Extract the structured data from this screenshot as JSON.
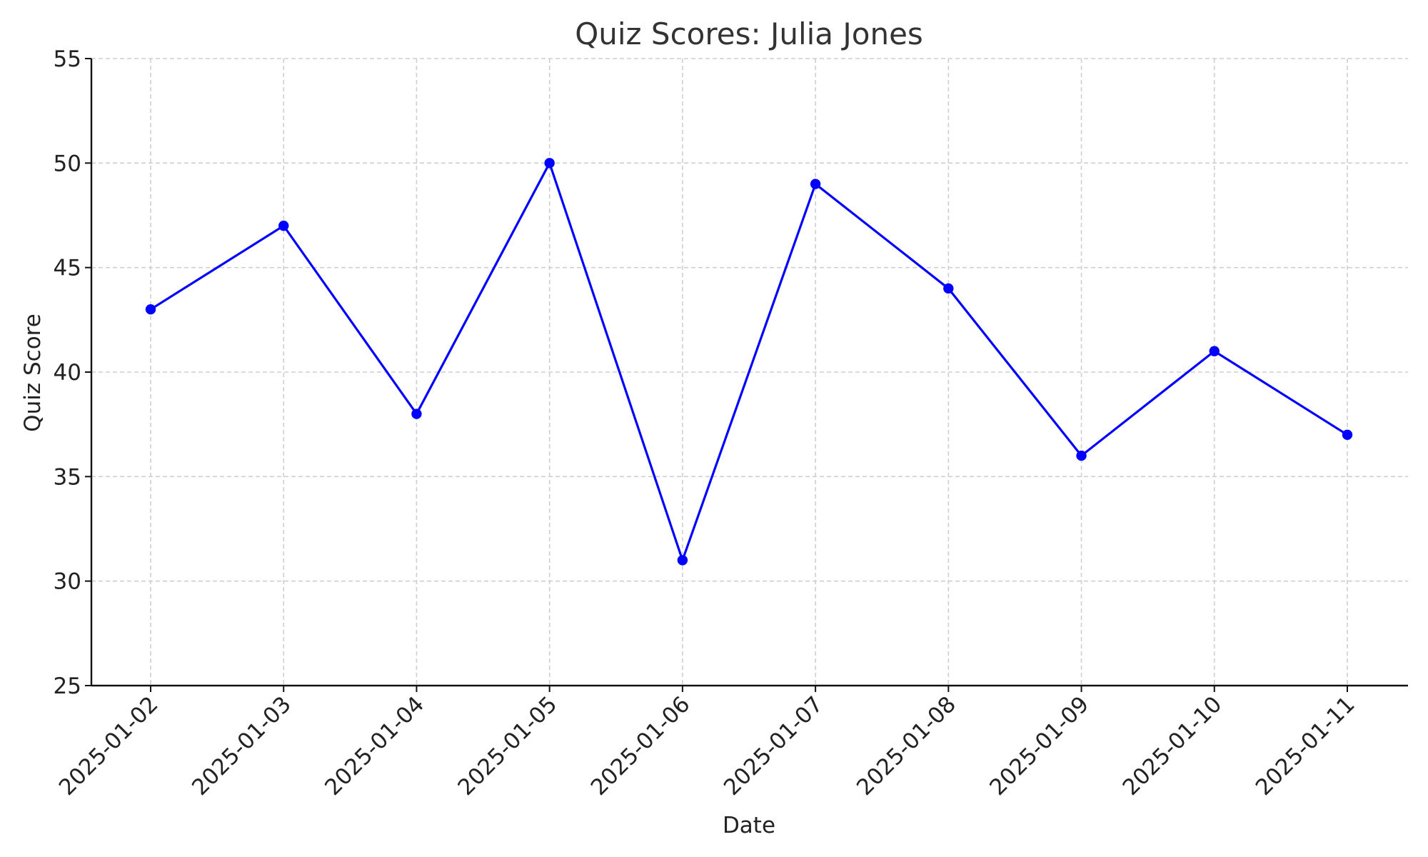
{
  "chart_data": {
    "type": "line",
    "title": "Quiz Scores: Julia Jones",
    "xlabel": "Date",
    "ylabel": "Quiz Score",
    "x": [
      "2025-01-02",
      "2025-01-03",
      "2025-01-04",
      "2025-01-05",
      "2025-01-06",
      "2025-01-07",
      "2025-01-08",
      "2025-01-09",
      "2025-01-10",
      "2025-01-11"
    ],
    "y": [
      43,
      47,
      38,
      50,
      31,
      49,
      44,
      36,
      41,
      37
    ],
    "ylim": [
      25,
      55
    ],
    "yticks": [
      25,
      30,
      35,
      40,
      45,
      50,
      55
    ],
    "grid": true,
    "legend": false,
    "line_color": "#0000ff",
    "marker": "circle"
  }
}
